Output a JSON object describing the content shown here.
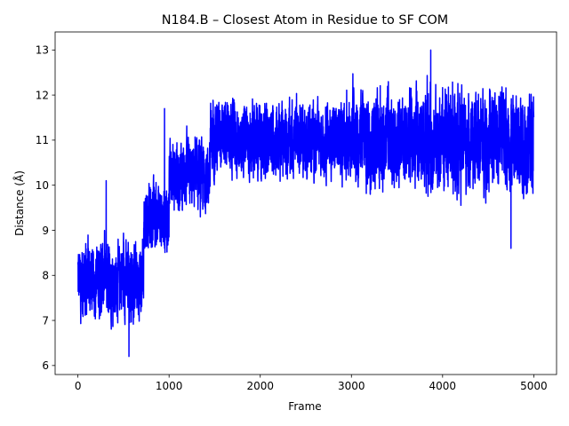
{
  "chart_data": {
    "type": "line",
    "title": "N184.B – Closest Atom in Residue to SF COM",
    "xlabel": "Frame",
    "ylabel": "Distance (Å)",
    "xlim": [
      -250,
      5250
    ],
    "ylim": [
      5.8,
      13.4
    ],
    "xticks": [
      0,
      1000,
      2000,
      3000,
      4000,
      5000
    ],
    "yticks": [
      6,
      7,
      8,
      9,
      10,
      11,
      12,
      13
    ],
    "xtick_labels": [
      "0",
      "1000",
      "2000",
      "3000",
      "4000",
      "5000"
    ],
    "ytick_labels": [
      "6",
      "7",
      "8",
      "9",
      "10",
      "11",
      "12",
      "13"
    ],
    "grid": false,
    "legend": "none",
    "series": [
      {
        "color": "#0000ff",
        "x_range": [
          0,
          5000
        ],
        "points_count": 5001,
        "segments": [
          {
            "x_start": 0,
            "x_end": 720,
            "mean": 7.9,
            "low": 6.2,
            "high": 9.5
          },
          {
            "x_start": 720,
            "x_end": 1000,
            "mean": 9.3,
            "low": 7.9,
            "high": 11.7
          },
          {
            "x_start": 1000,
            "x_end": 1450,
            "mean": 10.2,
            "low": 8.2,
            "high": 11.6
          },
          {
            "x_start": 1450,
            "x_end": 3000,
            "mean": 11.0,
            "low": 9.3,
            "high": 12.5
          },
          {
            "x_start": 3000,
            "x_end": 5000,
            "mean": 11.0,
            "low": 8.6,
            "high": 13.0
          }
        ],
        "notable_points": [
          {
            "x": 560,
            "y": 6.2
          },
          {
            "x": 310,
            "y": 10.1
          },
          {
            "x": 950,
            "y": 11.7
          },
          {
            "x": 3870,
            "y": 13.0
          },
          {
            "x": 4750,
            "y": 8.6
          }
        ]
      }
    ]
  }
}
